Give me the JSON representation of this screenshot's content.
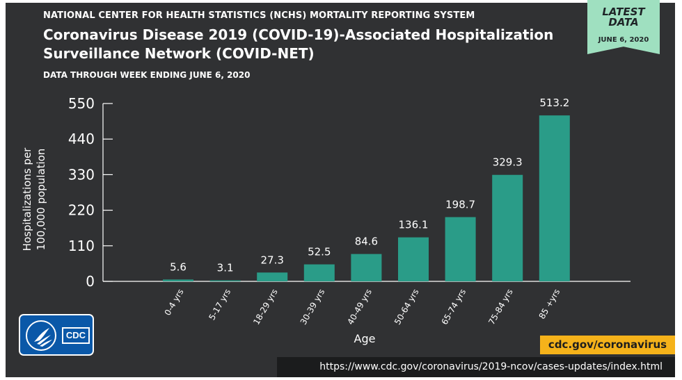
{
  "header": {
    "agency": "NATIONAL CENTER FOR HEALTH STATISTICS (NCHS) MORTALITY REPORTING SYSTEM",
    "title_line1": "Coronavirus Disease 2019 (COVID-19)-Associated Hospitalization",
    "title_line2": "Surveillance Network (COVID-NET)",
    "subtitle": "DATA THROUGH WEEK ENDING JUNE 6, 2020"
  },
  "badge": {
    "line1": "LATEST",
    "line2": "DATA",
    "date": "JUNE 6, 2020",
    "color": "#9fe0c0"
  },
  "chart_data": {
    "type": "bar",
    "title": "Coronavirus Disease 2019 (COVID-19)-Associated Hospitalization Surveillance Network (COVID-NET)",
    "xlabel": "Age",
    "ylabel_line1": "Hospitalizations per",
    "ylabel_line2": "100,000 population",
    "categories": [
      "0-4 yrs",
      "5-17 yrs",
      "18-29 yrs",
      "30-39 yrs",
      "40-49 yrs",
      "50-64 yrs",
      "65-74 yrs",
      "75-84 yrs",
      "85 +yrs"
    ],
    "values": [
      5.6,
      3.1,
      27.3,
      52.5,
      84.6,
      136.1,
      198.7,
      329.3,
      513.2
    ],
    "value_labels": [
      "5.6",
      "3.1",
      "27.3",
      "52.5",
      "84.6",
      "136.1",
      "198.7",
      "329.3",
      "513.2"
    ],
    "yticks": [
      0,
      110,
      220,
      330,
      440,
      550
    ],
    "ylim": [
      0,
      550
    ],
    "bar_color": "#2a9c88",
    "grid": false,
    "legend": "none"
  },
  "logo": {
    "text": "CDC",
    "color": "#0a58a8"
  },
  "footer": {
    "site": "cdc.gov/coronavirus",
    "site_color": "#f5b21a",
    "url": "https://www.cdc.gov/coronavirus/2019-ncov/cases-updates/index.html"
  }
}
